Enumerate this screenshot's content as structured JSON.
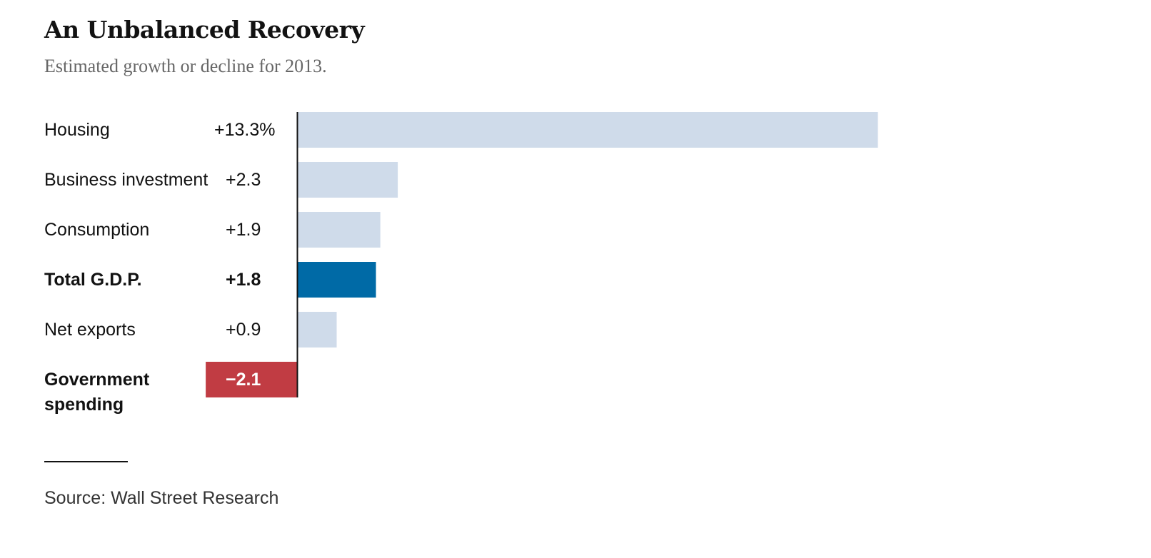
{
  "header": {
    "title": "An Unbalanced Recovery",
    "subtitle": "Estimated growth or decline for 2013."
  },
  "footer": {
    "source": "Source: Wall Street Research"
  },
  "colors": {
    "bar_default": "#cfdbea",
    "bar_highlight": "#006aa6",
    "bar_negative": "#c13c43",
    "axis": "#121212",
    "text": "#121212"
  },
  "chart_data": {
    "type": "bar",
    "orientation": "horizontal",
    "title": "An Unbalanced Recovery",
    "subtitle": "Estimated growth or decline for 2013.",
    "unit": "%",
    "categories": [
      "Housing",
      "Business investment",
      "Consumption",
      "Total G.D.P.",
      "Net exports",
      "Government spending"
    ],
    "values": [
      13.3,
      2.3,
      1.9,
      1.8,
      0.9,
      -2.1
    ],
    "value_labels": [
      "+13.3%",
      "+2.3",
      "+1.9",
      "+1.8",
      "+0.9",
      "−2.1"
    ],
    "emphasis": [
      false,
      false,
      false,
      true,
      false,
      true
    ],
    "xlim": [
      -2.1,
      13.3
    ],
    "grid": false,
    "legend": "none"
  }
}
